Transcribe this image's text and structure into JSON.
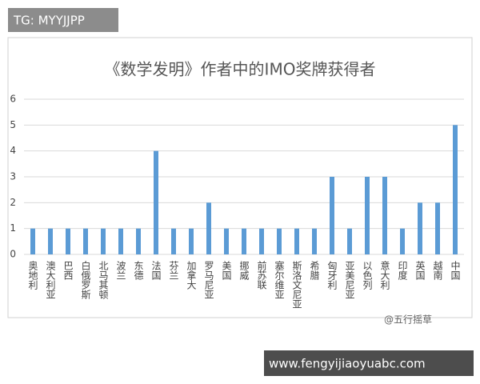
{
  "chart_data": {
    "type": "bar",
    "title": "《数学发明》作者中的IMO奖牌获得者",
    "categories": [
      "奥地利",
      "澳大利亚",
      "巴西",
      "白俄罗斯",
      "北马其顿",
      "波兰",
      "东德",
      "法国",
      "芬兰",
      "加拿大",
      "罗马尼亚",
      "美国",
      "挪威",
      "前苏联",
      "塞尔维亚",
      "斯洛文尼亚",
      "希腊",
      "匈牙利",
      "亚美尼亚",
      "以色列",
      "意大利",
      "印度",
      "英国",
      "越南",
      "中国"
    ],
    "values": [
      1,
      1,
      1,
      1,
      1,
      1,
      1,
      4,
      1,
      1,
      2,
      1,
      1,
      1,
      1,
      1,
      1,
      3,
      1,
      3,
      3,
      1,
      2,
      2,
      5
    ],
    "color": "#5b9bd5",
    "ylim": [
      0,
      6
    ],
    "yticks": [
      0,
      1,
      2,
      3,
      4,
      5,
      6
    ],
    "grid": true
  },
  "overlays": {
    "tag": "TG: MYYJJPP",
    "watermark": "@五行摇草",
    "site": "www.fengyijiaoyuabc.com"
  }
}
